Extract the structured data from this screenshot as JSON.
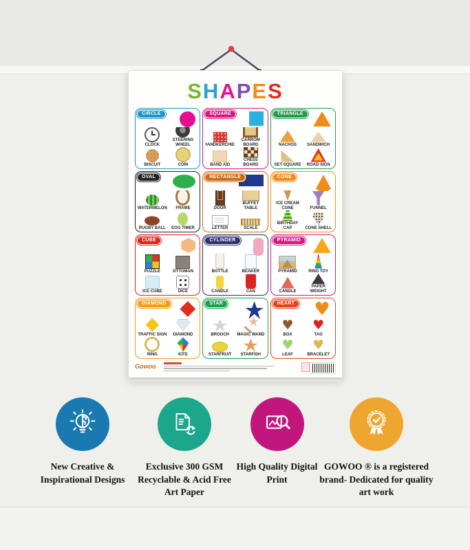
{
  "poster": {
    "title_letters": [
      {
        "char": "S",
        "color": "#76b82a"
      },
      {
        "char": "H",
        "color": "#2d9fd6"
      },
      {
        "char": "A",
        "color": "#e5138c"
      },
      {
        "char": "P",
        "color": "#7d4fa8"
      },
      {
        "char": "E",
        "color": "#f08c19"
      },
      {
        "char": "S",
        "color": "#e02b1f"
      }
    ],
    "brand": "Gowoo",
    "cells": [
      {
        "name": "circle",
        "header": "CIRCLE",
        "header_color": "#1d94c8",
        "shape_color": "#e50e8e",
        "items": [
          {
            "label": "CLOCK",
            "icon": "clock"
          },
          {
            "label": "STEERING WHEEL",
            "icon": "steering-wheel"
          },
          {
            "label": "BISCUIT",
            "icon": "biscuit"
          },
          {
            "label": "COIN",
            "icon": "coin"
          }
        ]
      },
      {
        "name": "square",
        "header": "SQUARE",
        "header_color": "#d41880",
        "shape_color": "#2bb1e0",
        "items": [
          {
            "label": "HANDKERCHIEF",
            "icon": "handkerchief"
          },
          {
            "label": "CARROM BOARD",
            "icon": "carrom-board"
          },
          {
            "label": "BAND AID",
            "icon": "band-aid"
          },
          {
            "label": "CHESS BOARD",
            "icon": "chess-board"
          }
        ]
      },
      {
        "name": "triangle",
        "header": "TRIANGLE",
        "header_color": "#1f9e4b",
        "shape_color": "#f08c19",
        "items": [
          {
            "label": "NACHOS",
            "icon": "nachos"
          },
          {
            "label": "SANDWICH",
            "icon": "sandwich"
          },
          {
            "label": "SET-SQUARE",
            "icon": "set-square"
          },
          {
            "label": "ROAD SIGN",
            "icon": "road-sign"
          }
        ]
      },
      {
        "name": "oval",
        "header": "OVAL",
        "header_color": "#222222",
        "shape_color": "#2db04b",
        "items": [
          {
            "label": "WATERMELON",
            "icon": "watermelon"
          },
          {
            "label": "FRAME",
            "icon": "frame"
          },
          {
            "label": "RUGBY BALL",
            "icon": "rugby-ball"
          },
          {
            "label": "EGG TIMER",
            "icon": "egg-timer"
          }
        ]
      },
      {
        "name": "rectangle",
        "header": "RECTANGLE",
        "header_color": "#cc6d15",
        "shape_color": "#20398f",
        "items": [
          {
            "label": "DOOR",
            "icon": "door"
          },
          {
            "label": "BUFFET TABLE",
            "icon": "buffet-table"
          },
          {
            "label": "LETTER",
            "icon": "letter"
          },
          {
            "label": "SCALE",
            "icon": "scale"
          }
        ]
      },
      {
        "name": "cone",
        "header": "CONE",
        "header_color": "#ef8b16",
        "shape_color": "#f08c19",
        "items": [
          {
            "label": "ICE CREAM CONE",
            "icon": "ice-cream-cone"
          },
          {
            "label": "FUNNEL",
            "icon": "funnel"
          },
          {
            "label": "BIRTHDAY CAP",
            "icon": "birthday-cap"
          },
          {
            "label": "CONE SHELL",
            "icon": "cone-shell"
          }
        ]
      },
      {
        "name": "cube",
        "header": "CUBE",
        "header_color": "#da251d",
        "shape_color": "#f6b980",
        "items": [
          {
            "label": "PUZZLE",
            "icon": "puzzle"
          },
          {
            "label": "OTTOMAN",
            "icon": "ottoman"
          },
          {
            "label": "ICE CUBE",
            "icon": "ice-cube"
          },
          {
            "label": "DICE",
            "icon": "dice"
          }
        ]
      },
      {
        "name": "cylinder",
        "header": "CYLINDER",
        "header_color": "#2b2f6e",
        "shape_color": "#f4a7c3",
        "items": [
          {
            "label": "BOTTLE",
            "icon": "bottle"
          },
          {
            "label": "BEAKER",
            "icon": "beaker"
          },
          {
            "label": "CANDLE",
            "icon": "candle"
          },
          {
            "label": "CAN",
            "icon": "can"
          }
        ]
      },
      {
        "name": "pyramid",
        "header": "PYRAMID",
        "header_color": "#d41880",
        "shape_color": "#f6a71c",
        "items": [
          {
            "label": "PYRAMID",
            "icon": "pyramid-photo"
          },
          {
            "label": "RING TOY",
            "icon": "ring-toy"
          },
          {
            "label": "CANDLE",
            "icon": "candle-pyramid"
          },
          {
            "label": "PAPER WEIGHT",
            "icon": "paper-weight"
          }
        ]
      },
      {
        "name": "diamond",
        "header": "DIAMOND",
        "header_color": "#ef9c16",
        "shape_color": "#e02b1f",
        "items": [
          {
            "label": "TRAFFIC SIGN",
            "icon": "traffic-sign"
          },
          {
            "label": "DIAMOND",
            "icon": "diamond-gem"
          },
          {
            "label": "RING",
            "icon": "ring"
          },
          {
            "label": "KITE",
            "icon": "kite"
          }
        ]
      },
      {
        "name": "star",
        "header": "STAR",
        "header_color": "#1f9e4b",
        "shape_color": "#20398f",
        "items": [
          {
            "label": "BROOCH",
            "icon": "brooch"
          },
          {
            "label": "MAGIC WAND",
            "icon": "magic-wand"
          },
          {
            "label": "STARFRUIT",
            "icon": "starfruit"
          },
          {
            "label": "STARFISH",
            "icon": "starfish"
          }
        ]
      },
      {
        "name": "heart",
        "header": "HEART",
        "header_color": "#e2421b",
        "shape_color": "#f08c19",
        "items": [
          {
            "label": "BOX",
            "icon": "heart-box"
          },
          {
            "label": "TAG",
            "icon": "heart-tag"
          },
          {
            "label": "LEAF",
            "icon": "heart-leaf"
          },
          {
            "label": "BRACELET",
            "icon": "heart-bracelet"
          }
        ]
      }
    ]
  },
  "features": [
    {
      "caption": "New Creative & Inspirational Designs",
      "circle_color": "#1b79b2",
      "icon": "bulb-brain"
    },
    {
      "caption": "Exclusive 300 GSM Recyclable & Acid Free Art Paper",
      "circle_color": "#1aa78b",
      "icon": "recycle-paper"
    },
    {
      "caption": "High Quality Digital Print",
      "circle_color": "#c1177d",
      "icon": "print-quality"
    },
    {
      "caption": "GOWOO ® is a registered brand- Dedicated for quality art work",
      "circle_color": "#efa62f",
      "icon": "award-badge"
    }
  ]
}
